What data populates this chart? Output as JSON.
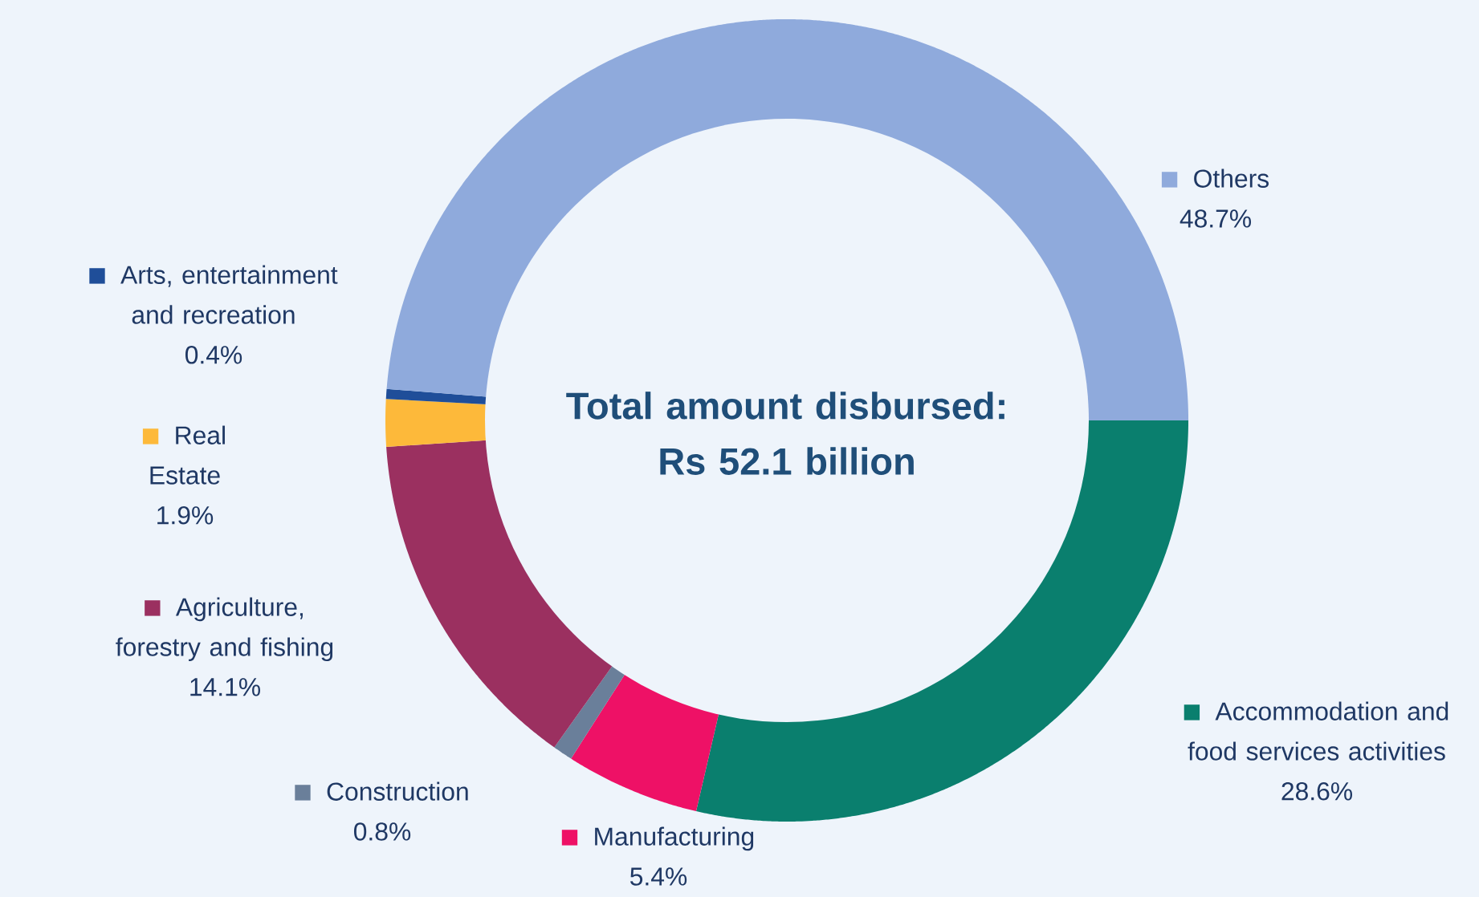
{
  "chart_data": {
    "type": "donut",
    "title": "Total amount disbursed: Rs 52.1 billion",
    "categories": [
      "Accommodation and food services activities",
      "Manufacturing",
      "Construction",
      "Agriculture, forestry and fishing",
      "Real Estate",
      "Arts, entertainment and recreation",
      "Others"
    ],
    "values": [
      28.6,
      5.4,
      0.8,
      14.1,
      1.9,
      0.4,
      48.7
    ],
    "value_labels": [
      "28.6%",
      "5.4%",
      "0.8%",
      "14.1%",
      "1.9%",
      "0.4%",
      "48.7%"
    ],
    "legend": "right",
    "colors": [
      "#0a7f6e",
      "#ee1166",
      "#6a7f9a",
      "#9b3060",
      "#fdb93a",
      "#1f4e99",
      "#8faadc"
    ]
  }
}
